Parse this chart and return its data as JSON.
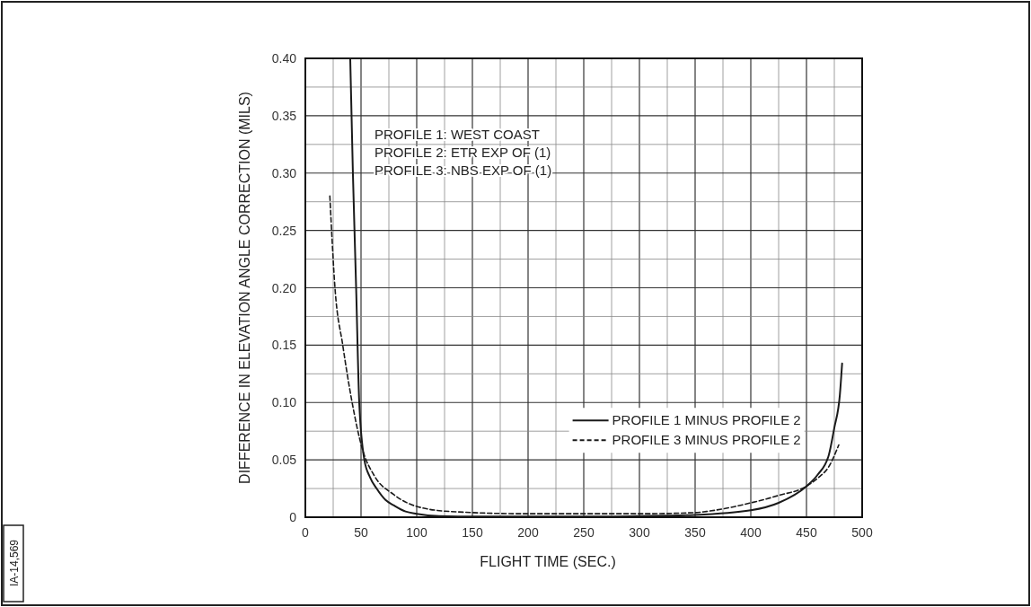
{
  "chart_data": {
    "type": "line",
    "xlabel": "FLIGHT TIME (SEC.)",
    "ylabel": "DIFFERENCE IN ELEVATION ANGLE CORRECTION (MILS)",
    "annotations": [
      "PROFILE 1: WEST COAST",
      "PROFILE 2: ETR EXP OF (1)",
      "PROFILE 3: NBS EXP OF (1)",
      "IA-14,569"
    ],
    "xlim": [
      0,
      500
    ],
    "xticks": [
      0,
      {
        "value": 25,
        "label": null
      },
      50,
      {
        "value": 75,
        "label": null
      },
      100,
      {
        "value": 125,
        "label": null
      },
      150,
      {
        "value": 175,
        "label": null
      },
      200,
      {
        "value": 225,
        "label": null
      },
      250,
      {
        "value": 275,
        "label": null
      },
      300,
      {
        "value": 325,
        "label": null
      },
      350,
      {
        "value": 375,
        "label": null
      },
      400,
      {
        "value": 425,
        "label": null
      },
      450,
      {
        "value": 475,
        "label": null
      },
      500
    ],
    "ylim": [
      0,
      0.4
    ],
    "yticks": [
      0,
      {
        "value": 0.025,
        "label": null
      },
      0.05,
      {
        "value": 0.075,
        "label": null
      },
      {
        "value": 0.1,
        "label": "0.10"
      },
      {
        "value": 0.125,
        "label": null
      },
      0.15,
      {
        "value": 0.175,
        "label": null
      },
      {
        "value": 0.2,
        "label": "0.20"
      },
      {
        "value": 0.225,
        "label": null
      },
      0.25,
      {
        "value": 0.275,
        "label": null
      },
      {
        "value": 0.3,
        "label": "0.30"
      },
      {
        "value": 0.325,
        "label": null
      },
      0.35,
      {
        "value": 0.375,
        "label": null
      },
      {
        "value": 0.4,
        "label": "0.40"
      }
    ],
    "grid": true,
    "legend": "bottom right",
    "series": [
      {
        "name": "PROFILE 1 MINUS PROFILE 2",
        "color": "#1a1a1a",
        "line_style": "solid",
        "x": [
          40.3,
          42.7,
          45.6,
          48.4,
          53,
          58,
          64,
          72,
          80,
          90,
          100,
          120,
          150,
          200,
          250,
          300,
          350,
          400,
          425,
          450,
          460,
          470,
          475,
          480,
          482
        ],
        "values": [
          0.4,
          0.3,
          0.2,
          0.1,
          0.05,
          0.035,
          0.025,
          0.015,
          0.01,
          0.005,
          0.003,
          0.001,
          0.0005,
          0.0005,
          0.0005,
          0.001,
          0.002,
          0.006,
          0.0125,
          0.027,
          0.037,
          0.054,
          0.078,
          0.107,
          0.134
        ]
      },
      {
        "name": "PROFILE 3 MINUS PROFILE 2",
        "color": "#1a1a1a",
        "line_style": "dashed",
        "x": [
          22,
          26.6,
          33.6,
          42,
          51,
          62,
          79,
          98,
          130,
          200,
          250,
          300,
          350,
          360,
          400,
          425,
          450,
          460,
          470,
          479
        ],
        "values": [
          0.28,
          0.2,
          0.15,
          0.1,
          0.06,
          0.036,
          0.02,
          0.01,
          0.005,
          0.003,
          0.003,
          0.003,
          0.004,
          0.005,
          0.0125,
          0.019,
          0.027,
          0.034,
          0.044,
          0.063
        ]
      }
    ]
  }
}
